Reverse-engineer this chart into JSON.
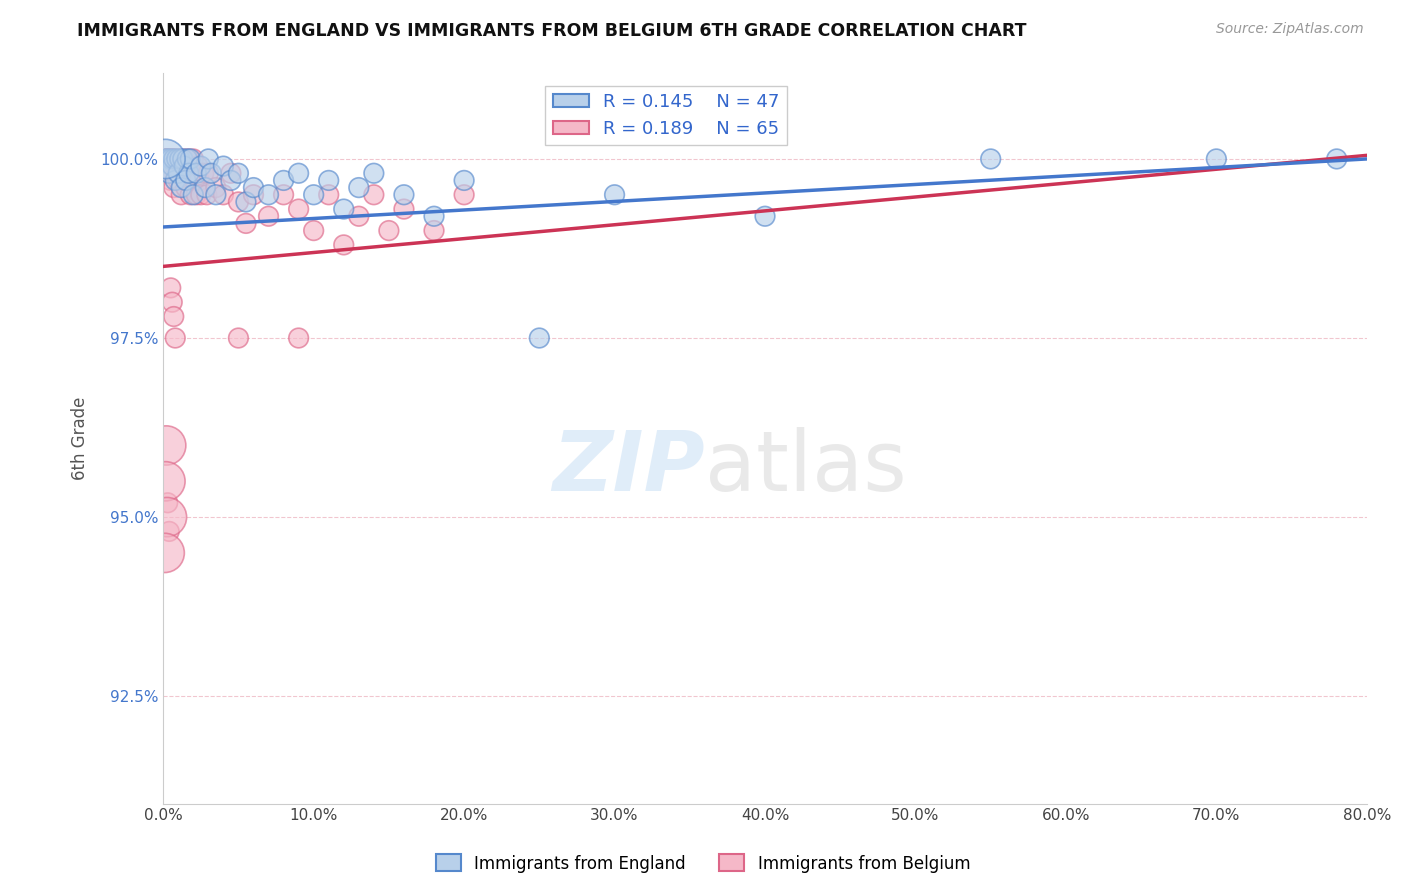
{
  "title": "IMMIGRANTS FROM ENGLAND VS IMMIGRANTS FROM BELGIUM 6TH GRADE CORRELATION CHART",
  "source_text": "Source: ZipAtlas.com",
  "ylabel": "6th Grade",
  "xlim": [
    0.0,
    80.0
  ],
  "ylim": [
    91.0,
    101.2
  ],
  "yticks": [
    92.5,
    95.0,
    97.5,
    100.0
  ],
  "ytick_labels": [
    "92.5%",
    "95.0%",
    "97.5%",
    "100.0%"
  ],
  "xticks": [
    0.0,
    10.0,
    20.0,
    30.0,
    40.0,
    50.0,
    60.0,
    70.0,
    80.0
  ],
  "xtick_labels": [
    "0.0%",
    "10.0%",
    "20.0%",
    "30.0%",
    "40.0%",
    "50.0%",
    "60.0%",
    "70.0%",
    "80.0%"
  ],
  "england_color": "#b8d0ea",
  "england_edge_color": "#5588cc",
  "belgium_color": "#f5b8c8",
  "belgium_edge_color": "#dd6688",
  "trend_england_color": "#4477cc",
  "trend_belgium_color": "#cc3355",
  "R_england": 0.145,
  "N_england": 47,
  "R_belgium": 0.189,
  "N_belgium": 65,
  "legend_label_england": "Immigrants from England",
  "legend_label_belgium": "Immigrants from Belgium",
  "trend_england_x0": 0.0,
  "trend_england_y0": 99.05,
  "trend_england_x1": 80.0,
  "trend_england_y1": 100.0,
  "trend_belgium_x0": 0.0,
  "trend_belgium_y0": 98.5,
  "trend_belgium_x1": 80.0,
  "trend_belgium_y1": 100.05,
  "england_x": [
    0.2,
    0.3,
    0.4,
    0.5,
    0.6,
    0.7,
    0.8,
    0.9,
    1.0,
    1.1,
    1.2,
    1.3,
    1.4,
    1.5,
    1.6,
    1.7,
    1.8,
    2.0,
    2.2,
    2.5,
    2.8,
    3.0,
    3.2,
    3.5,
    4.0,
    4.5,
    5.0,
    5.5,
    6.0,
    7.0,
    8.0,
    9.0,
    10.0,
    11.0,
    12.0,
    13.0,
    14.0,
    16.0,
    18.0,
    20.0,
    25.0,
    30.0,
    40.0,
    55.0,
    70.0,
    78.0,
    0.15
  ],
  "england_y": [
    100.0,
    100.0,
    99.8,
    100.0,
    99.9,
    100.0,
    99.7,
    100.0,
    99.8,
    100.0,
    99.6,
    100.0,
    99.9,
    99.7,
    100.0,
    99.8,
    100.0,
    99.5,
    99.8,
    99.9,
    99.6,
    100.0,
    99.8,
    99.5,
    99.9,
    99.7,
    99.8,
    99.4,
    99.6,
    99.5,
    99.7,
    99.8,
    99.5,
    99.7,
    99.3,
    99.6,
    99.8,
    99.5,
    99.2,
    99.7,
    97.5,
    99.5,
    99.2,
    100.0,
    100.0,
    100.0,
    100.0
  ],
  "england_sizes": [
    200,
    200,
    200,
    200,
    200,
    200,
    200,
    200,
    200,
    200,
    200,
    200,
    200,
    200,
    200,
    200,
    200,
    200,
    200,
    200,
    200,
    200,
    200,
    200,
    200,
    200,
    200,
    200,
    200,
    200,
    200,
    200,
    200,
    200,
    200,
    200,
    200,
    200,
    200,
    200,
    200,
    200,
    200,
    200,
    200,
    200,
    800
  ],
  "belgium_x": [
    0.1,
    0.15,
    0.2,
    0.25,
    0.3,
    0.35,
    0.4,
    0.45,
    0.5,
    0.55,
    0.6,
    0.65,
    0.7,
    0.75,
    0.8,
    0.9,
    1.0,
    1.1,
    1.2,
    1.3,
    1.4,
    1.5,
    1.6,
    1.7,
    1.8,
    1.9,
    2.0,
    2.1,
    2.2,
    2.3,
    2.4,
    2.5,
    2.7,
    2.9,
    3.0,
    3.5,
    4.0,
    4.5,
    5.0,
    5.5,
    6.0,
    7.0,
    8.0,
    9.0,
    10.0,
    11.0,
    12.0,
    13.0,
    14.0,
    15.0,
    16.0,
    18.0,
    20.0,
    5.0,
    9.0,
    0.5,
    0.6,
    0.7,
    0.8,
    0.3,
    0.4,
    0.2,
    0.15,
    0.25,
    0.1
  ],
  "belgium_y": [
    100.0,
    100.0,
    100.0,
    99.8,
    100.0,
    99.9,
    99.8,
    100.0,
    99.7,
    100.0,
    99.8,
    100.0,
    99.6,
    99.9,
    100.0,
    99.8,
    99.7,
    100.0,
    99.5,
    99.8,
    100.0,
    99.6,
    99.9,
    100.0,
    99.5,
    99.8,
    100.0,
    99.7,
    99.5,
    99.9,
    99.7,
    99.5,
    99.8,
    99.5,
    99.8,
    99.6,
    99.5,
    99.8,
    99.4,
    99.1,
    99.5,
    99.2,
    99.5,
    99.3,
    99.0,
    99.5,
    98.8,
    99.2,
    99.5,
    99.0,
    99.3,
    99.0,
    99.5,
    97.5,
    97.5,
    98.2,
    98.0,
    97.8,
    97.5,
    95.2,
    94.8,
    96.0,
    95.5,
    95.0,
    94.5
  ],
  "belgium_sizes": [
    200,
    200,
    200,
    200,
    200,
    200,
    200,
    200,
    200,
    200,
    200,
    200,
    200,
    200,
    200,
    200,
    200,
    200,
    200,
    200,
    200,
    200,
    200,
    200,
    200,
    200,
    200,
    200,
    200,
    200,
    200,
    200,
    200,
    200,
    200,
    200,
    200,
    200,
    200,
    200,
    200,
    200,
    200,
    200,
    200,
    200,
    200,
    200,
    200,
    200,
    200,
    200,
    200,
    200,
    200,
    200,
    200,
    200,
    200,
    200,
    200,
    800,
    800,
    800,
    800
  ]
}
